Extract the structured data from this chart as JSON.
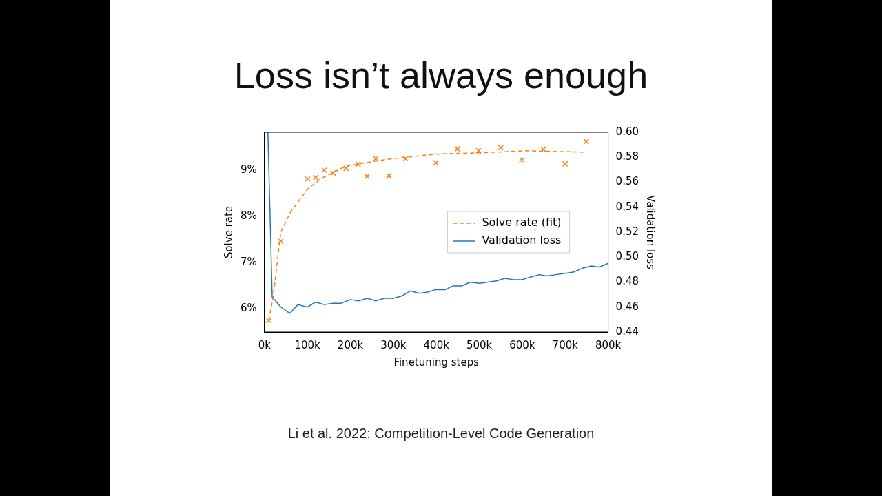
{
  "chart_data": {
    "type": "line",
    "title": "Loss isn’t always enough",
    "xlabel": "Finetuning steps",
    "ylabel": "Solve rate",
    "y2label": "Validation loss",
    "annotations": [
      "Li et al. 2022: Competition-Level Code Generation"
    ],
    "xlim": [
      0,
      800000
    ],
    "xticks": [
      {
        "value": 0,
        "label": "0k"
      },
      {
        "value": 100000,
        "label": "100k"
      },
      {
        "value": 200000,
        "label": "200k"
      },
      {
        "value": 300000,
        "label": "300k"
      },
      {
        "value": 400000,
        "label": "400k"
      },
      {
        "value": 500000,
        "label": "500k"
      },
      {
        "value": 600000,
        "label": "600k"
      },
      {
        "value": 700000,
        "label": "700k"
      },
      {
        "value": 800000,
        "label": "800k"
      }
    ],
    "ylim": [
      5.5,
      9.82
    ],
    "yticks": [
      {
        "value": 6,
        "label": "6%"
      },
      {
        "value": 7,
        "label": "7%"
      },
      {
        "value": 8,
        "label": "8%"
      },
      {
        "value": 9,
        "label": "9%"
      }
    ],
    "y2lim": [
      0.44,
      0.6
    ],
    "y2ticks": [
      {
        "value": 0.44,
        "label": "0.44"
      },
      {
        "value": 0.46,
        "label": "0.46"
      },
      {
        "value": 0.48,
        "label": "0.48"
      },
      {
        "value": 0.5,
        "label": "0.50"
      },
      {
        "value": 0.52,
        "label": "0.52"
      },
      {
        "value": 0.54,
        "label": "0.54"
      },
      {
        "value": 0.56,
        "label": "0.56"
      },
      {
        "value": 0.58,
        "label": "0.58"
      },
      {
        "value": 0.6,
        "label": "0.60"
      }
    ],
    "grid": false,
    "legend": "right",
    "series": [
      {
        "type": "scatter",
        "color": "#ff7f0e",
        "marker": "cross",
        "x": [
          10000,
          38000,
          100000,
          119000,
          139000,
          160000,
          190000,
          218000,
          239000,
          259000,
          290000,
          328000,
          399000,
          449000,
          498000,
          550000,
          599000,
          649000,
          700000,
          749000
        ],
        "values": [
          5.75,
          7.46,
          8.81,
          8.84,
          9.0,
          8.94,
          9.04,
          9.13,
          8.87,
          9.25,
          8.88,
          9.25,
          9.16,
          9.46,
          9.42,
          9.49,
          9.22,
          9.45,
          9.14,
          9.62
        ]
      },
      {
        "type": "line",
        "name": "Solve rate (fit)",
        "color": "#ff7f0e",
        "line_style": "dashed",
        "marker": "none",
        "x": [
          10000,
          20000,
          38000,
          61000,
          100000,
          132000,
          190000,
          281000,
          399000,
          512000,
          606000,
          748000
        ],
        "values": [
          5.75,
          6.25,
          7.66,
          8.1,
          8.59,
          8.82,
          9.09,
          9.23,
          9.35,
          9.38,
          9.42,
          9.39
        ]
      },
      {
        "type": "line",
        "name": "Validation loss",
        "color": "#1f77b4",
        "axis": "y2",
        "line_style": "solid",
        "marker": "none",
        "x": [
          8000,
          18000,
          38000,
          59000,
          78000,
          100000,
          119000,
          139000,
          160000,
          178000,
          200000,
          219000,
          239000,
          259000,
          279000,
          300000,
          320000,
          340000,
          360000,
          380000,
          399000,
          421000,
          439000,
          459000,
          479000,
          500000,
          520000,
          540000,
          559000,
          579000,
          599000,
          619000,
          639000,
          658000,
          678000,
          700000,
          719000,
          739000,
          761000,
          779000,
          800000
        ],
        "values": [
          0.6,
          0.468,
          0.46,
          0.455,
          0.462,
          0.46,
          0.464,
          0.462,
          0.463,
          0.463,
          0.466,
          0.465,
          0.467,
          0.465,
          0.467,
          0.467,
          0.469,
          0.473,
          0.471,
          0.472,
          0.474,
          0.474,
          0.477,
          0.477,
          0.48,
          0.479,
          0.48,
          0.481,
          0.483,
          0.482,
          0.482,
          0.484,
          0.486,
          0.485,
          0.486,
          0.487,
          0.488,
          0.491,
          0.493,
          0.492,
          0.495
        ]
      }
    ]
  }
}
